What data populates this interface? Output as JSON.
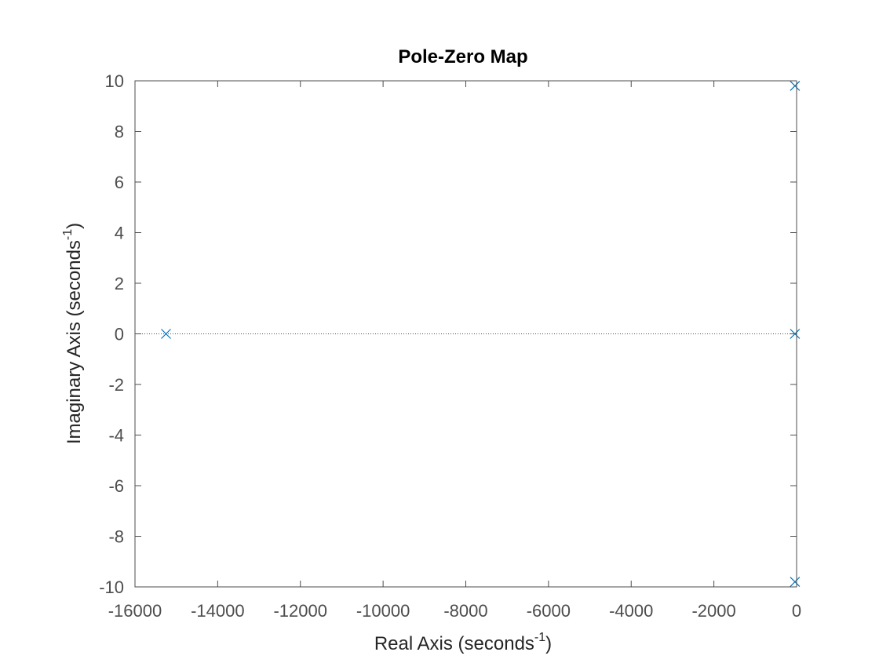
{
  "chart_data": {
    "type": "scatter",
    "title": "Pole-Zero Map",
    "xlabel": {
      "text": "Real Axis (seconds",
      "superscript": "-1",
      "suffix": ")"
    },
    "ylabel": {
      "text": "Imaginary Axis (seconds",
      "superscript": "-1",
      "suffix": ")"
    },
    "xlim": [
      -16000,
      0
    ],
    "ylim": [
      -10,
      10
    ],
    "xticks": [
      -16000,
      -14000,
      -12000,
      -10000,
      -8000,
      -6000,
      -4000,
      -2000,
      0
    ],
    "xtick_labels": [
      "-16000",
      "-14000",
      "-12000",
      "-10000",
      "-8000",
      "-6000",
      "-4000",
      "-2000",
      "0"
    ],
    "yticks": [
      10,
      8,
      6,
      4,
      2,
      0,
      -2,
      -4,
      -6,
      -8,
      -10
    ],
    "ytick_labels": [
      "10",
      "8",
      "6",
      "4",
      "2",
      "0",
      "-2",
      "-4",
      "-6",
      "-8",
      "-10"
    ],
    "grid": false,
    "series": [
      {
        "marker": "x",
        "color": "#0072bd",
        "points": [
          {
            "x": -15250,
            "y": 0
          },
          {
            "x": -40,
            "y": 0
          },
          {
            "x": -40,
            "y": 9.8
          },
          {
            "x": -40,
            "y": -9.8
          }
        ]
      }
    ],
    "reference_lines": {
      "real_axis": true,
      "imaginary_axis": true,
      "style": "dotted"
    },
    "colors": {
      "axis": "#4d4d4d",
      "reference": "#4d4d4d"
    }
  }
}
